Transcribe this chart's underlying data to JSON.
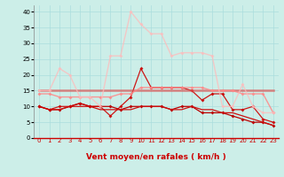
{
  "x": [
    0,
    1,
    2,
    3,
    4,
    5,
    6,
    7,
    8,
    9,
    10,
    11,
    12,
    13,
    14,
    15,
    16,
    17,
    18,
    19,
    20,
    21,
    22,
    23
  ],
  "lines": [
    {
      "y": [
        10,
        9,
        9,
        10,
        11,
        10,
        10,
        10,
        9,
        10,
        10,
        10,
        10,
        9,
        10,
        10,
        8,
        8,
        8,
        7,
        6,
        5,
        5,
        4
      ],
      "color": "#bb0000",
      "lw": 0.9,
      "marker": "D",
      "ms": 2.0,
      "alpha": 1.0
    },
    {
      "y": [
        10,
        9,
        9,
        10,
        10,
        10,
        9,
        9,
        9,
        9,
        10,
        10,
        10,
        9,
        9,
        10,
        9,
        9,
        8,
        8,
        7,
        6,
        5,
        4
      ],
      "color": "#cc1111",
      "lw": 0.9,
      "marker": null,
      "ms": 0,
      "alpha": 1.0
    },
    {
      "y": [
        10,
        9,
        10,
        10,
        11,
        10,
        10,
        7,
        10,
        13,
        22,
        16,
        16,
        16,
        16,
        15,
        12,
        14,
        14,
        9,
        9,
        10,
        6,
        5
      ],
      "color": "#cc0000",
      "lw": 0.9,
      "marker": "D",
      "ms": 2.0,
      "alpha": 0.9
    },
    {
      "y": [
        15,
        15,
        15,
        15,
        15,
        15,
        15,
        15,
        15,
        15,
        15,
        15,
        15,
        15,
        15,
        15,
        15,
        15,
        15,
        15,
        15,
        15,
        15,
        15
      ],
      "color": "#dd5555",
      "lw": 1.8,
      "marker": null,
      "ms": 0,
      "alpha": 0.7
    },
    {
      "y": [
        14,
        14,
        13,
        13,
        13,
        13,
        13,
        13,
        14,
        14,
        16,
        16,
        16,
        16,
        16,
        16,
        16,
        15,
        15,
        15,
        14,
        14,
        14,
        8
      ],
      "color": "#ff8888",
      "lw": 1.0,
      "marker": "D",
      "ms": 2.0,
      "alpha": 0.85
    },
    {
      "y": [
        15,
        15,
        22,
        20,
        13,
        13,
        10,
        26,
        26,
        40,
        36,
        33,
        33,
        26,
        27,
        27,
        27,
        26,
        10,
        10,
        17,
        10,
        8,
        8
      ],
      "color": "#ffbbbb",
      "lw": 1.0,
      "marker": "D",
      "ms": 2.0,
      "alpha": 0.75
    }
  ],
  "arrow_dirs": [
    180,
    180,
    225,
    315,
    45,
    45,
    315,
    315,
    270,
    270,
    270,
    270,
    270,
    270,
    270,
    315,
    270,
    315,
    315,
    45,
    45,
    45,
    45,
    45
  ],
  "xlabel": "Vent moyen/en rafales ( km/h )",
  "xlabel_color": "#cc0000",
  "xlabel_fontsize": 6.5,
  "xlim": [
    -0.5,
    23.5
  ],
  "ylim": [
    0,
    42
  ],
  "yticks": [
    0,
    5,
    10,
    15,
    20,
    25,
    30,
    35,
    40
  ],
  "xtick_labels": [
    "0",
    "1",
    "2",
    "3",
    "4",
    "5",
    "6",
    "7",
    "8",
    "9",
    "10",
    "11",
    "12",
    "13",
    "14",
    "15",
    "16",
    "17",
    "18",
    "19",
    "20",
    "21",
    "22",
    "23"
  ],
  "bg_color": "#cceee8",
  "grid_color": "#aadddd",
  "tick_fontsize": 5.0,
  "arrow_color": "#cc0000",
  "spine_color": "#cc0000"
}
